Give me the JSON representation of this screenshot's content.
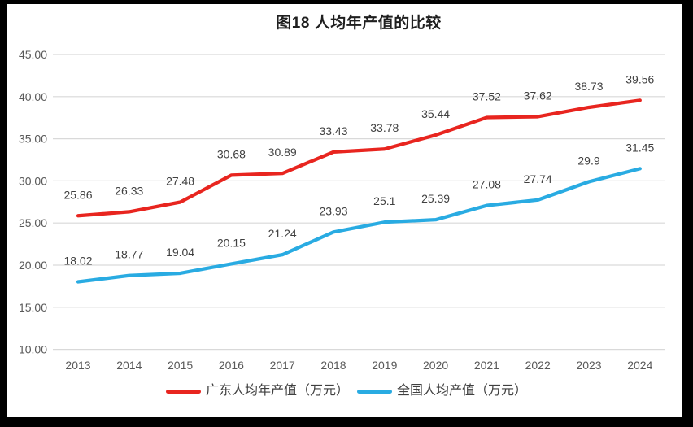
{
  "frame": {
    "background_color": "#000000",
    "canvas_color": "#ffffff"
  },
  "chart_data": {
    "type": "line",
    "title": "图18 人均年产值的比较",
    "categories": [
      "2013",
      "2014",
      "2015",
      "2016",
      "2017",
      "2018",
      "2019",
      "2020",
      "2021",
      "2022",
      "2023",
      "2024"
    ],
    "series": [
      {
        "name": "广东人均年产值（万元）",
        "color": "#e8251f",
        "values": [
          25.86,
          26.33,
          27.48,
          30.68,
          30.89,
          33.43,
          33.78,
          35.44,
          37.52,
          37.62,
          38.73,
          39.56
        ],
        "labels": [
          "25.86",
          "26.33",
          "27.48",
          "30.68",
          "30.89",
          "33.43",
          "33.78",
          "35.44",
          "37.52",
          "37.62",
          "38.73",
          "39.56"
        ]
      },
      {
        "name": "全国人均产值（万元）",
        "color": "#29abe2",
        "values": [
          18.02,
          18.77,
          19.04,
          20.15,
          21.24,
          23.93,
          25.1,
          25.39,
          27.08,
          27.74,
          29.9,
          31.45
        ],
        "labels": [
          "18.02",
          "18.77",
          "19.04",
          "20.15",
          "21.24",
          "23.93",
          "25.1",
          "25.39",
          "27.08",
          "27.74",
          "29.9",
          "31.45"
        ]
      }
    ],
    "ylim": [
      10,
      45
    ],
    "ytick_step": 5,
    "yticks": [
      "10.00",
      "15.00",
      "20.00",
      "25.00",
      "30.00",
      "35.00",
      "40.00",
      "45.00"
    ],
    "grid": true,
    "legend_position": "bottom",
    "gridline_color": "#d9d9d9",
    "axis_label_color": "#595959",
    "data_label_color": "#404040"
  }
}
